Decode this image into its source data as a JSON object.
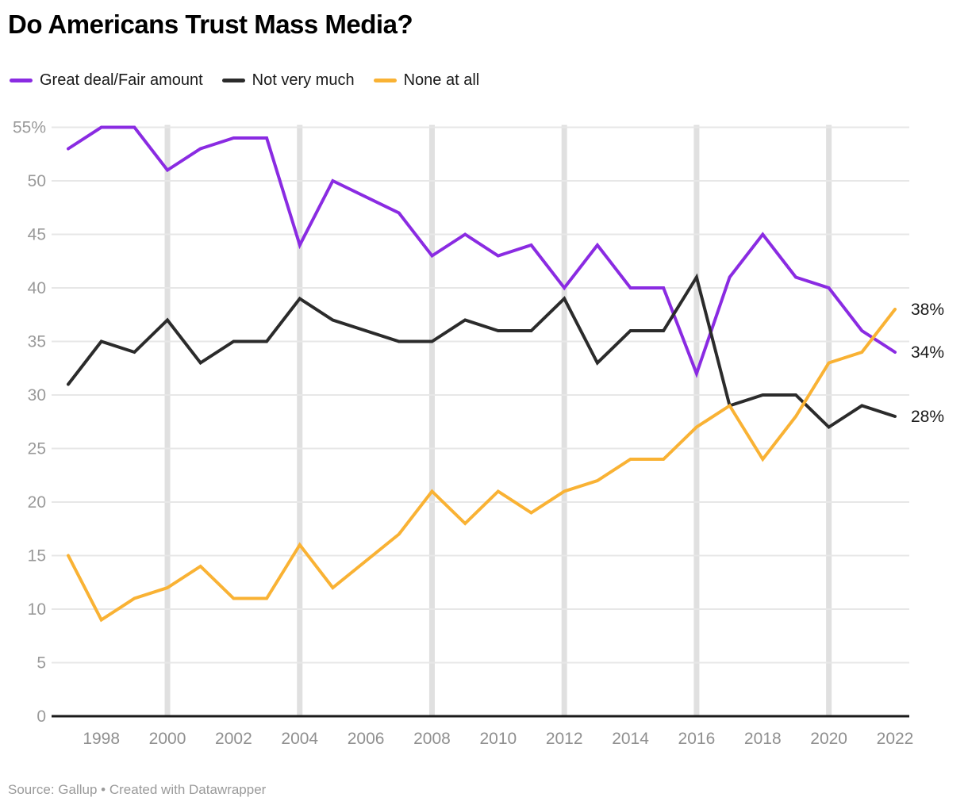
{
  "page": {
    "title": "Do Americans Trust Mass Media?",
    "source_line": "Source: Gallup • Created with Datawrapper"
  },
  "legend": {
    "items": [
      {
        "label": "Great deal/Fair amount",
        "color": "#8a2be2"
      },
      {
        "label": "Not very much",
        "color": "#2b2b2b"
      },
      {
        "label": "None at all",
        "color": "#f9b234"
      }
    ]
  },
  "chart_data": {
    "type": "line",
    "title": "Do Americans Trust Mass Media?",
    "xlabel": "",
    "ylabel": "",
    "ylim": [
      0,
      55
    ],
    "grid": "horizontal thin lines every 5, thick vertical highlight columns every 4 years",
    "legend_position": "top",
    "x": [
      1997,
      1998,
      1999,
      2000,
      2001,
      2002,
      2003,
      2004,
      2005,
      2006,
      2007,
      2008,
      2009,
      2010,
      2011,
      2012,
      2013,
      2014,
      2015,
      2016,
      2017,
      2018,
      2019,
      2020,
      2021,
      2022
    ],
    "series": [
      {
        "name": "Great deal/Fair amount",
        "color": "#8a2be2",
        "end_label": "34%",
        "values": [
          53,
          55,
          55,
          51,
          53,
          54,
          54,
          44,
          50,
          null,
          47,
          43,
          45,
          43,
          44,
          40,
          44,
          40,
          40,
          32,
          41,
          45,
          41,
          40,
          36,
          34
        ]
      },
      {
        "name": "Not very much",
        "color": "#2b2b2b",
        "end_label": "28%",
        "values": [
          31,
          35,
          34,
          37,
          33,
          35,
          35,
          39,
          37,
          null,
          35,
          35,
          37,
          36,
          36,
          39,
          33,
          36,
          36,
          41,
          29,
          30,
          30,
          27,
          29,
          28
        ]
      },
      {
        "name": "None at all",
        "color": "#f9b234",
        "end_label": "38%",
        "values": [
          15,
          9,
          11,
          12,
          14,
          11,
          11,
          16,
          12,
          null,
          17,
          21,
          18,
          21,
          19,
          21,
          22,
          24,
          24,
          27,
          29,
          24,
          28,
          33,
          34,
          38
        ]
      }
    ],
    "y_ticks": [
      {
        "value": 0,
        "label": "0"
      },
      {
        "value": 5,
        "label": "5"
      },
      {
        "value": 10,
        "label": "10"
      },
      {
        "value": 15,
        "label": "15"
      },
      {
        "value": 20,
        "label": "20"
      },
      {
        "value": 25,
        "label": "25"
      },
      {
        "value": 30,
        "label": "30"
      },
      {
        "value": 35,
        "label": "35"
      },
      {
        "value": 40,
        "label": "40"
      },
      {
        "value": 45,
        "label": "45"
      },
      {
        "value": 50,
        "label": "50"
      },
      {
        "value": 55,
        "label": "55%"
      }
    ],
    "x_ticks": [
      1998,
      2000,
      2002,
      2004,
      2006,
      2008,
      2010,
      2012,
      2014,
      2016,
      2018,
      2020,
      2022
    ],
    "highlight_years": [
      2000,
      2004,
      2008,
      2012,
      2016,
      2020
    ],
    "colors": {
      "thin_gridline": "#e7e7e7",
      "highlight_column": "#e0e0e0",
      "baseline": "#1a1a1a",
      "y_tick_label": "#9a9a9a",
      "x_tick_label": "#8f8f8f",
      "end_label": "#1a1a1a"
    }
  }
}
